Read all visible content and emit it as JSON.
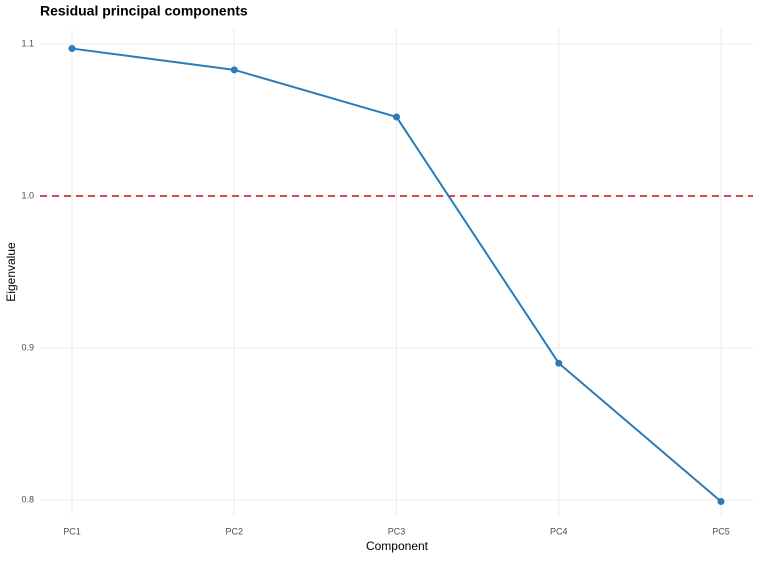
{
  "chart_data": {
    "type": "line",
    "title": "Residual principal components",
    "x_label": "Component",
    "y_label": "Eigenvalue",
    "categories": [
      "PC1",
      "PC2",
      "PC3",
      "PC4",
      "PC5"
    ],
    "series": [
      {
        "name": "Eigenvalue",
        "color": "#2c7bb6",
        "values": [
          1.097,
          1.083,
          1.052,
          0.89,
          0.799
        ]
      }
    ],
    "ylim": [
      0.79,
      1.11
    ],
    "yticks": [
      0.8,
      0.9,
      {
        "value": 1,
        "label": "1.0"
      },
      1.1
    ],
    "reference_line": {
      "value": 1,
      "color": "#e0474c"
    },
    "grid": true
  }
}
